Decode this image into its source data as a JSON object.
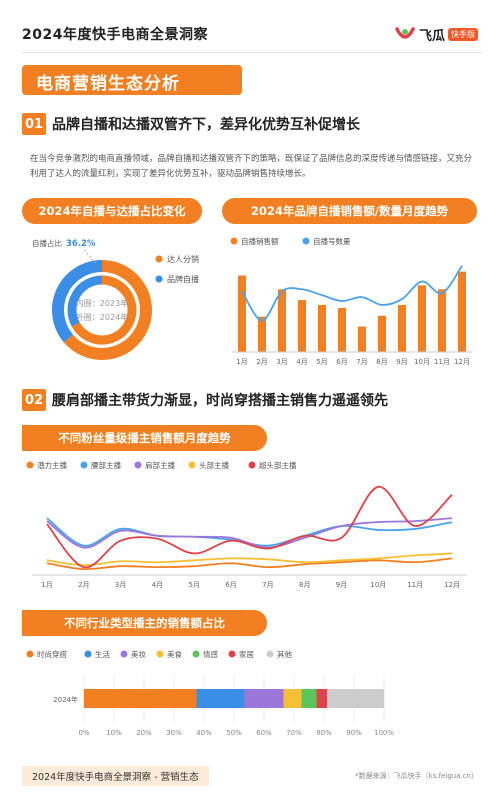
{
  "header": {
    "title": "2024年度快手电商全景洞察",
    "logo_text": "飞瓜",
    "logo_tag": "快手版"
  },
  "banner": {
    "title": "电商营销生态分析"
  },
  "section1": {
    "num": "01",
    "title": "品牌自播和达播双管齐下，差异化优势互补促增长",
    "paragraph": "在当今竞争激烈的电商直播领域，品牌自播和达播双管齐下的策略，既保证了品牌信息的深度传递与情感链接，又充分利用了达人的流量红利，实现了差异化优势互补，驱动品牌销售持续增长。"
  },
  "section2": {
    "num": "02",
    "title": "腰肩部播主带货力渐显，时尚穿搭播主销售力遥遥领先"
  },
  "footer": {
    "left": "2024年度快手电商全景洞察 - 营销生态",
    "right": "*数据来源：飞瓜快手（ks.feigua.cn）"
  },
  "chart_data": [
    {
      "id": "donut",
      "type": "pie",
      "title": "2024年自播与达播占比变化",
      "annotation_label": "自播占比",
      "annotation_value": "36.2%",
      "legend": [
        "达人分销",
        "品牌自播"
      ],
      "inner_label": "内圈：2023年",
      "outer_label": "外圈：2024年",
      "colors": {
        "达人分销": "#f28022",
        "品牌自播": "#3a8ee6"
      },
      "inner_ring": {
        "year": "2023年",
        "values": {
          "品牌自播": 33,
          "达人分销": 67
        }
      },
      "outer_ring": {
        "year": "2024年",
        "values": {
          "品牌自播": 36.2,
          "达人分销": 63.8
        }
      }
    },
    {
      "id": "brand_monthly",
      "type": "bar",
      "title": "2024年品牌自播销售额/数量月度趋势",
      "categories": [
        "1月",
        "2月",
        "3月",
        "4月",
        "5月",
        "6月",
        "7月",
        "8月",
        "9月",
        "10月",
        "11月",
        "12月"
      ],
      "series": [
        {
          "name": "自播销售额",
          "type": "bar",
          "color": "#f28022",
          "values": [
            78,
            36,
            64,
            53,
            48,
            45,
            26,
            37,
            48,
            68,
            64,
            82
          ]
        },
        {
          "name": "自播号数量",
          "type": "line",
          "color": "#4aa3e8",
          "values": [
            62,
            32,
            62,
            64,
            58,
            52,
            56,
            48,
            54,
            72,
            60,
            88
          ]
        }
      ],
      "ylim": [
        0,
        100
      ]
    },
    {
      "id": "fans_level",
      "type": "line",
      "title": "不同粉丝量级播主销售额月度趋势",
      "categories": [
        "1月",
        "2月",
        "3月",
        "4月",
        "5月",
        "6月",
        "7月",
        "8月",
        "9月",
        "10月",
        "11月",
        "12月"
      ],
      "ylim": [
        0,
        100
      ],
      "series": [
        {
          "name": "潜力主播",
          "color": "#f28022",
          "values": [
            12,
            6,
            9,
            8,
            9,
            12,
            8,
            11,
            13,
            15,
            13,
            17
          ]
        },
        {
          "name": "腰部主播",
          "color": "#4aa3e8",
          "values": [
            58,
            30,
            47,
            40,
            39,
            36,
            30,
            40,
            50,
            46,
            47,
            54
          ]
        },
        {
          "name": "肩部主播",
          "color": "#9c77d9",
          "values": [
            55,
            28,
            45,
            40,
            39,
            38,
            28,
            38,
            50,
            54,
            55,
            58
          ]
        },
        {
          "name": "头部主播",
          "color": "#f7c034",
          "values": [
            15,
            10,
            14,
            13,
            15,
            17,
            16,
            13,
            15,
            17,
            20,
            22
          ]
        },
        {
          "name": "超头部主播",
          "color": "#e0424b",
          "values": [
            52,
            8,
            35,
            37,
            22,
            35,
            27,
            40,
            38,
            90,
            50,
            82
          ]
        }
      ]
    },
    {
      "id": "industry",
      "type": "bar",
      "orientation": "horizontal-stacked",
      "title": "不同行业类型播主的销售额占比",
      "categories": [
        "2024年"
      ],
      "xlim": [
        0,
        100
      ],
      "x_ticks": [
        "0%",
        "10%",
        "20%",
        "30%",
        "40%",
        "50%",
        "60%",
        "70%",
        "80%",
        "90%",
        "100%"
      ],
      "series": [
        {
          "name": "时尚穿搭",
          "color": "#f28022",
          "values": [
            37.5
          ]
        },
        {
          "name": "生活",
          "color": "#3a8ee6",
          "values": [
            16
          ]
        },
        {
          "name": "美妆",
          "color": "#9c77d9",
          "values": [
            13
          ]
        },
        {
          "name": "美食",
          "color": "#f7c034",
          "values": [
            6
          ]
        },
        {
          "name": "情感",
          "color": "#5bc55b",
          "values": [
            5
          ]
        },
        {
          "name": "家居",
          "color": "#e0424b",
          "values": [
            3.5
          ]
        },
        {
          "name": "其他",
          "color": "#cccccc",
          "values": [
            19
          ]
        }
      ]
    }
  ]
}
